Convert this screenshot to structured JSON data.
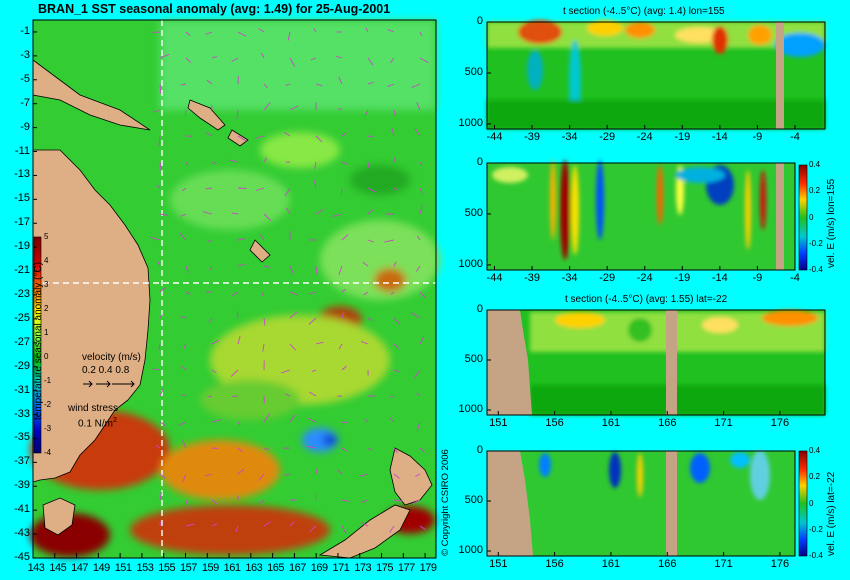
{
  "map": {
    "title": "BRAN_1 SST seasonal anomaly (avg: 1.49) for 25-Aug-2001",
    "y_ticks": [
      "-1",
      "-3",
      "-5",
      "-7",
      "-9",
      "-11",
      "-13",
      "-15",
      "-17",
      "-19",
      "-21",
      "-23",
      "-25",
      "-27",
      "-29",
      "-31",
      "-33",
      "-35",
      "-37",
      "-39",
      "-41",
      "-43",
      "-45"
    ],
    "x_ticks": [
      "143",
      "145",
      "147",
      "149",
      "151",
      "153",
      "155",
      "157",
      "159",
      "161",
      "163",
      "165",
      "167",
      "169",
      "171",
      "173",
      "175",
      "177",
      "179"
    ],
    "colorbar_label": "temperature seasonal anomaly (°C)",
    "colorbar_ticks": [
      "5",
      "4",
      "3",
      "2",
      "1",
      "0",
      "-1",
      "-2",
      "-3",
      "-4"
    ],
    "velocity_label": "velocity (m/s)",
    "velocity_scale": "0.2 0.4 0.8",
    "wind_label": "wind stress",
    "wind_scale": "0.1 N/m",
    "wind_scale_sup": "2",
    "copyright": "© Copyright CSIRO 2006"
  },
  "panels": [
    {
      "title": "t section (-4..5°C) (avg: 1.4) lon=155",
      "x_ticks": [
        "-44",
        "-39",
        "-34",
        "-29",
        "-24",
        "-19",
        "-14",
        "-9",
        "-4"
      ],
      "y_ticks": [
        "0",
        "500",
        "1000"
      ]
    },
    {
      "title": "",
      "x_ticks": [
        "-44",
        "-39",
        "-34",
        "-29",
        "-24",
        "-19",
        "-14",
        "-9",
        "-4"
      ],
      "y_ticks": [
        "0",
        "500",
        "1000"
      ],
      "colorbar_label": "vel. E (m/s) lon=155",
      "colorbar_ticks": [
        "0.4",
        "0.2",
        "0",
        "-0.2",
        "-0.4"
      ]
    },
    {
      "title": "t section (-4..5°C) (avg: 1.55) lat=-22",
      "x_ticks": [
        "151",
        "156",
        "161",
        "166",
        "171",
        "176"
      ],
      "y_ticks": [
        "0",
        "500",
        "1000"
      ]
    },
    {
      "title": "",
      "x_ticks": [
        "151",
        "156",
        "161",
        "166",
        "171",
        "176"
      ],
      "y_ticks": [
        "0",
        "500",
        "1000"
      ],
      "colorbar_label": "vel. E (m/s) lat=-22",
      "colorbar_ticks": [
        "0.4",
        "0.2",
        "0",
        "-0.2",
        "-0.4"
      ]
    }
  ],
  "chart_data": [
    {
      "type": "heatmap",
      "title": "BRAN_1 SST seasonal anomaly (avg: 1.49) for 25-Aug-2001",
      "xlim": [
        143,
        180
      ],
      "ylim": [
        -45,
        0
      ],
      "colorbar_range": [
        -4,
        5
      ],
      "colorbar_label": "temperature seasonal anomaly (°C)",
      "crosshair": {
        "lon": 155,
        "lat": -22
      }
    },
    {
      "type": "heatmap",
      "title": "t section (-4..5°C) (avg: 1.4) lon=155",
      "xlim": [
        -45,
        0
      ],
      "ylim": [
        1050,
        0
      ]
    },
    {
      "type": "heatmap",
      "title": "",
      "xlim": [
        -45,
        0
      ],
      "ylim": [
        1050,
        0
      ],
      "colorbar_range": [
        -0.4,
        0.4
      ],
      "colorbar_label": "vel. E (m/s) lon=155"
    },
    {
      "type": "heatmap",
      "title": "t section (-4..5°C) (avg: 1.55) lat=-22",
      "xlim": [
        150,
        180
      ],
      "ylim": [
        1050,
        0
      ]
    },
    {
      "type": "heatmap",
      "title": "",
      "xlim": [
        150,
        180
      ],
      "ylim": [
        1050,
        0
      ],
      "colorbar_range": [
        -0.4,
        0.4
      ],
      "colorbar_label": "vel. E (m/s) lat=-22"
    }
  ],
  "colors": {
    "background": "#00ffff",
    "land": "#deae84",
    "seafloor": "#c4a484",
    "crosshair": "#ffffff",
    "vector": "#cc44cc"
  }
}
